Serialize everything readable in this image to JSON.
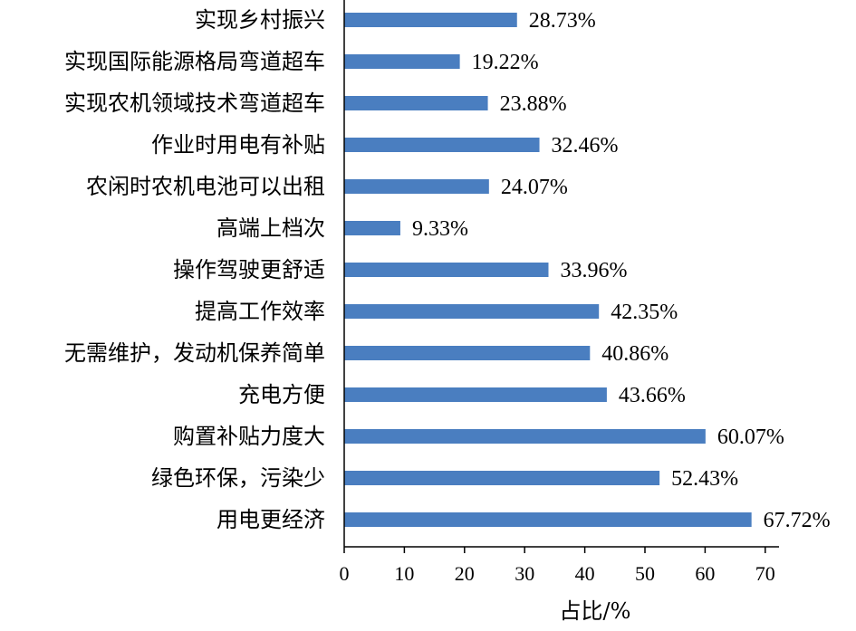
{
  "chart_data": {
    "type": "bar",
    "orientation": "horizontal",
    "categories": [
      "实现乡村振兴",
      "实现国际能源格局弯道超车",
      "实现农机领域技术弯道超车",
      "作业时用电有补贴",
      "农闲时农机电池可以出租",
      "高端上档次",
      "操作驾驶更舒适",
      "提高工作效率",
      "无需维护，发动机保养简单",
      "充电方便",
      "购置补贴力度大",
      "绿色环保，污染少",
      "用电更经济"
    ],
    "values": [
      28.73,
      19.22,
      23.88,
      32.46,
      24.07,
      9.33,
      33.96,
      42.35,
      40.86,
      43.66,
      60.07,
      52.43,
      67.72
    ],
    "value_labels": [
      "28.73%",
      "19.22%",
      "23.88%",
      "32.46%",
      "24.07%",
      "9.33%",
      "33.96%",
      "42.35%",
      "40.86%",
      "43.66%",
      "60.07%",
      "52.43%",
      "67.72%"
    ],
    "x_ticks": [
      "0",
      "10",
      "20",
      "30",
      "40",
      "50",
      "60",
      "70"
    ],
    "xlabel": "占比/%",
    "xlim": [
      0,
      70
    ],
    "grid": false,
    "bar_color": "#4a7ec0"
  }
}
